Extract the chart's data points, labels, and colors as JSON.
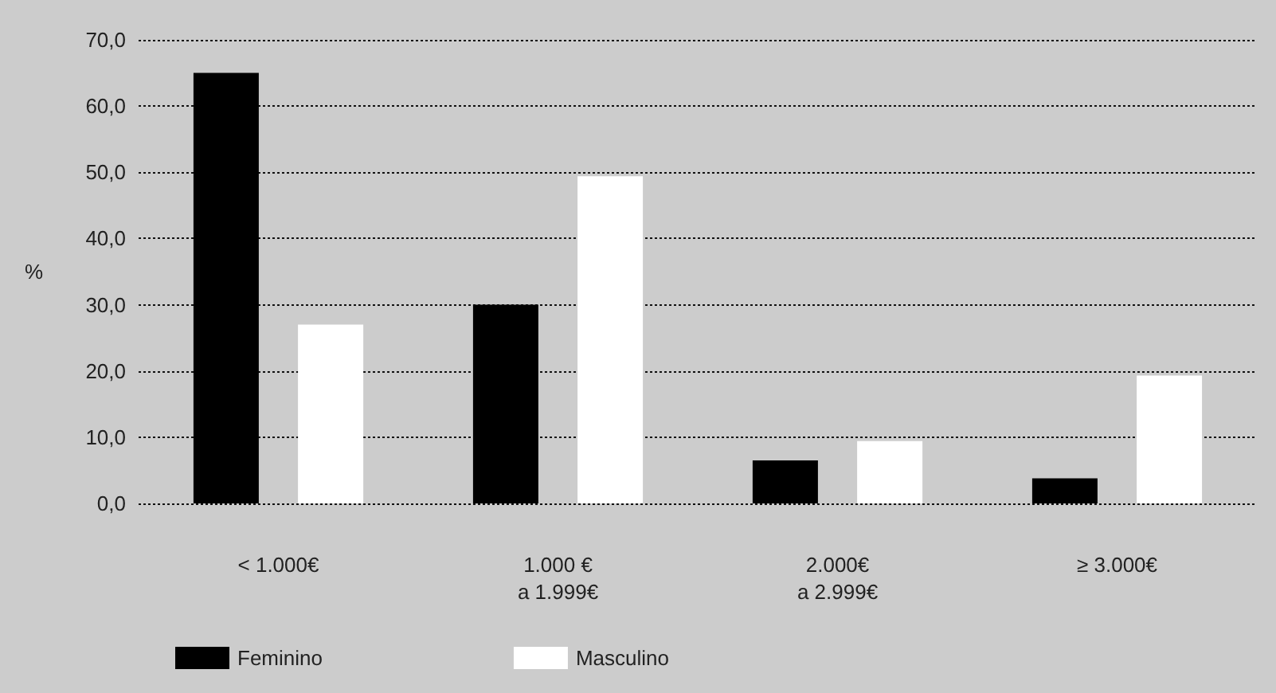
{
  "chart_data": {
    "type": "bar",
    "ylabel": "%",
    "categories": [
      "< 1.000€",
      "1.000 €\na 1.999€",
      "2.000€\na 2.999€",
      "≥ 3.000€"
    ],
    "series": [
      {
        "name": "Feminino",
        "color": "#000000",
        "values": [
          65,
          30,
          6.5,
          3.8
        ]
      },
      {
        "name": "Masculino",
        "color": "#ffffff",
        "values": [
          27,
          49.4,
          9.4,
          19.3
        ]
      }
    ],
    "ylim": [
      0,
      70
    ],
    "yticks": [
      {
        "value": 0,
        "label": "0,0"
      },
      {
        "value": 10,
        "label": "10,0"
      },
      {
        "value": 20,
        "label": "20,0"
      },
      {
        "value": 30,
        "label": "30,0"
      },
      {
        "value": 40,
        "label": "40,0"
      },
      {
        "value": 50,
        "label": "50,0"
      },
      {
        "value": 60,
        "label": "60,0"
      },
      {
        "value": 70,
        "label": "70,0"
      }
    ],
    "grid": "y",
    "legend": "bottom left"
  }
}
